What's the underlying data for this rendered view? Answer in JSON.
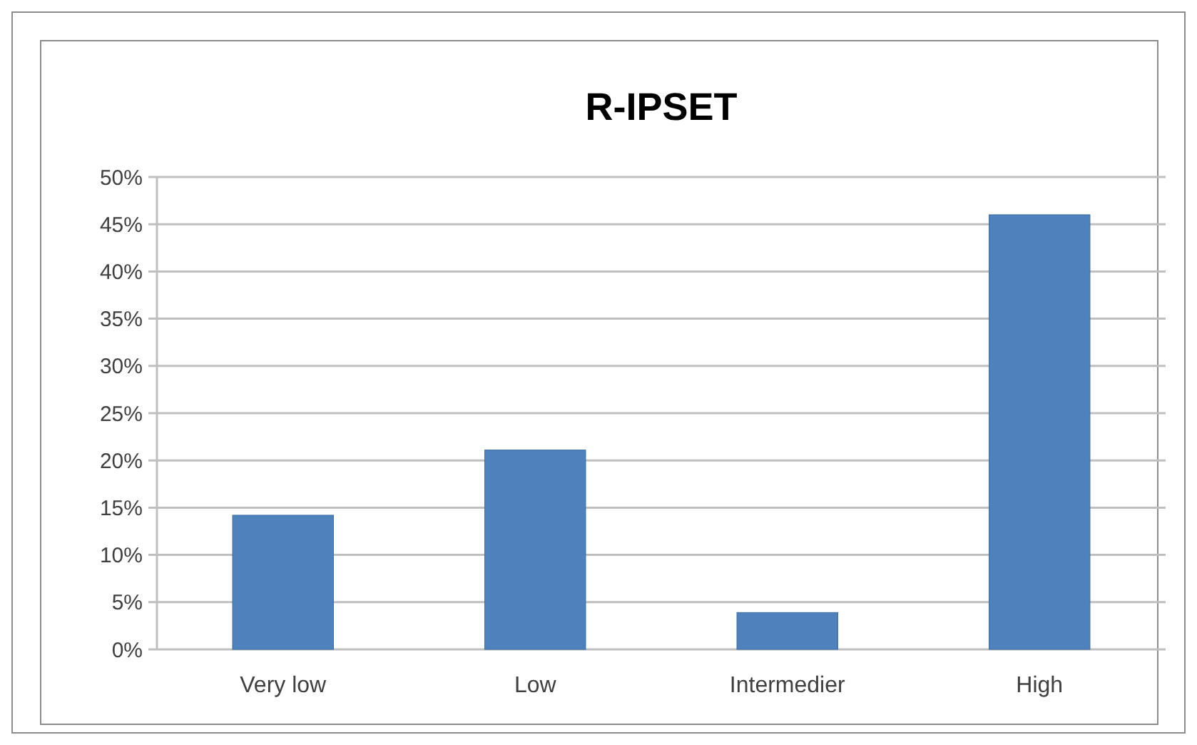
{
  "chart_data": {
    "type": "bar",
    "title": "R-IPSET",
    "categories": [
      "Very low",
      "Low",
      "Intermedier",
      "High"
    ],
    "values": [
      14.2,
      21.1,
      3.9,
      46.0
    ],
    "color": "#4f81bd",
    "ylim": [
      0,
      50
    ],
    "yticks": [
      {
        "value": 0,
        "label": "0%"
      },
      {
        "value": 5,
        "label": "5%"
      },
      {
        "value": 10,
        "label": "10%"
      },
      {
        "value": 15,
        "label": "15%"
      },
      {
        "value": 20,
        "label": "20%"
      },
      {
        "value": 25,
        "label": "25%"
      },
      {
        "value": 30,
        "label": "30%"
      },
      {
        "value": 35,
        "label": "35%"
      },
      {
        "value": 40,
        "label": "40%"
      },
      {
        "value": 45,
        "label": "45%"
      },
      {
        "value": 50,
        "label": "50%"
      }
    ],
    "grid": "y"
  }
}
